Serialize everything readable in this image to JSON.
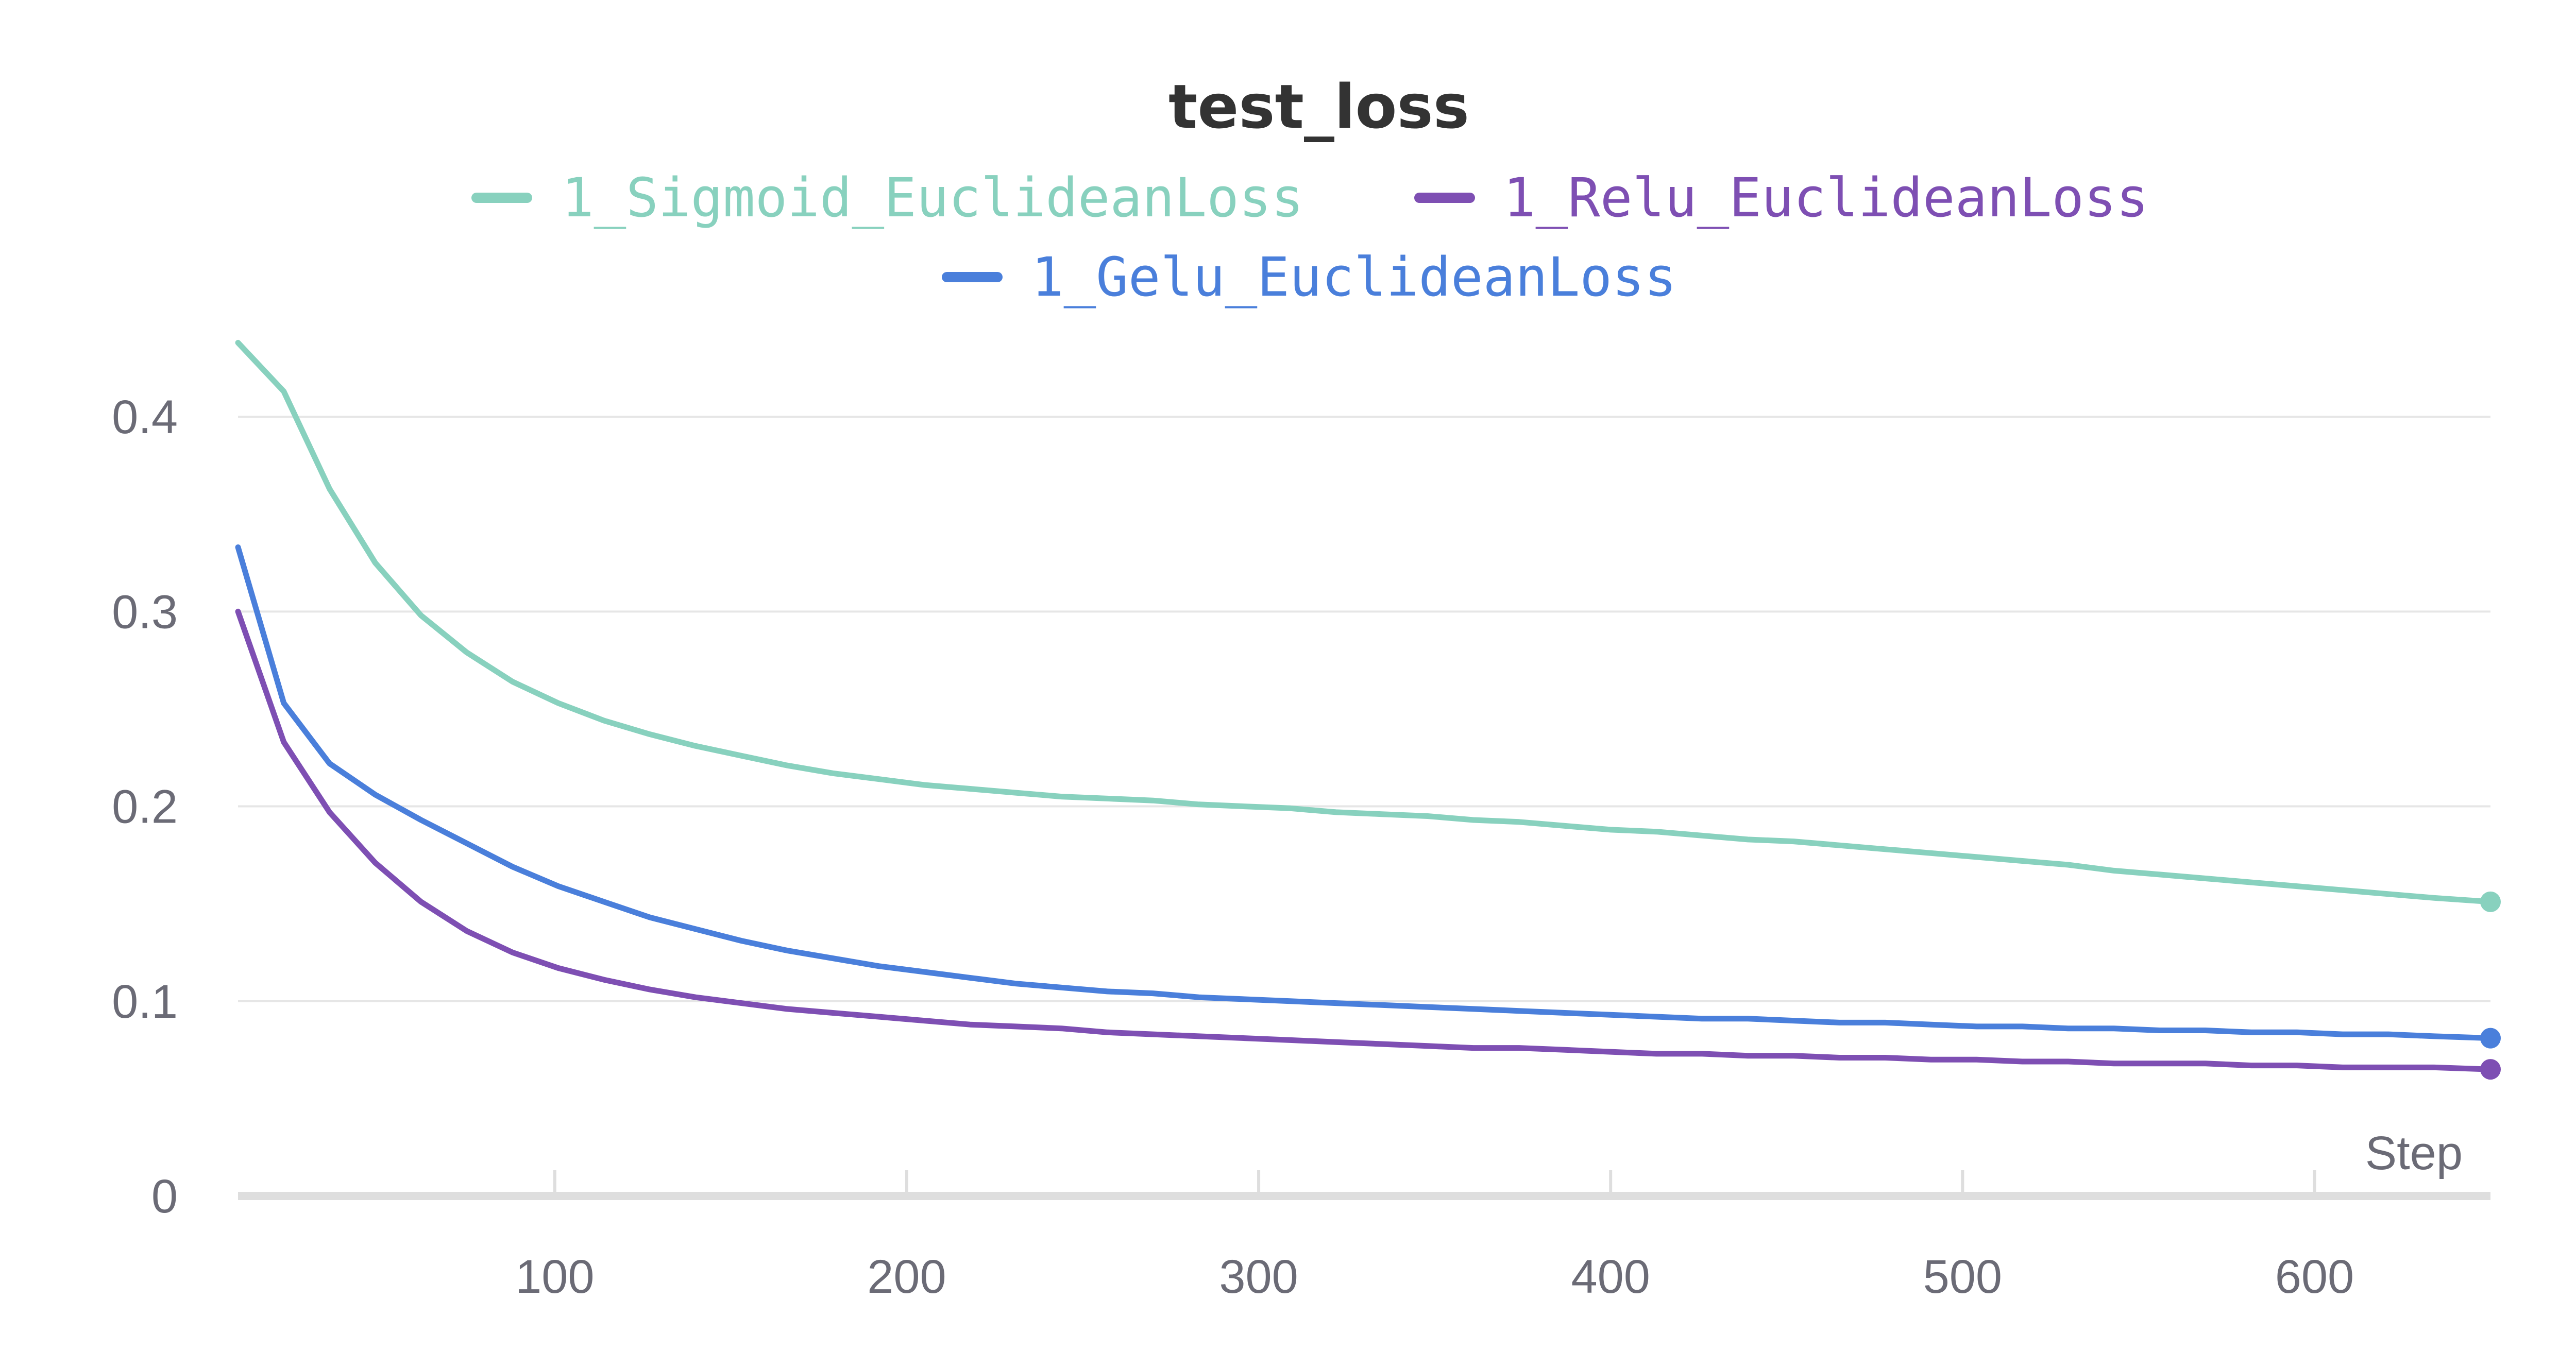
{
  "chart_data": {
    "type": "line",
    "title": "test_loss",
    "xlabel": "Step",
    "ylabel": "",
    "xlim": [
      10,
      650
    ],
    "ylim": [
      0,
      0.45
    ],
    "x_ticks": [
      100,
      200,
      300,
      400,
      500,
      600
    ],
    "y_ticks": [
      0,
      0.1,
      0.2,
      0.3,
      0.4
    ],
    "x_tick_labels": [
      "100",
      "200",
      "300",
      "400",
      "500",
      "600"
    ],
    "y_tick_labels": [
      "0",
      "0.1",
      "0.2",
      "0.3",
      "0.4"
    ],
    "grid": true,
    "legend_position": "top-center",
    "series": [
      {
        "name": "1_Sigmoid_EuclideanLoss",
        "color": "#88d1be",
        "x": [
          10,
          23,
          36,
          49,
          62,
          75,
          88,
          101,
          114,
          127,
          140,
          153,
          166,
          179,
          192,
          205,
          218,
          231,
          244,
          257,
          270,
          283,
          296,
          309,
          322,
          335,
          348,
          361,
          374,
          387,
          400,
          413,
          426,
          439,
          452,
          465,
          478,
          491,
          504,
          517,
          530,
          543,
          556,
          569,
          582,
          595,
          608,
          621,
          634,
          650
        ],
        "y": [
          0.438,
          0.413,
          0.363,
          0.325,
          0.298,
          0.279,
          0.264,
          0.253,
          0.244,
          0.237,
          0.231,
          0.226,
          0.221,
          0.217,
          0.214,
          0.211,
          0.209,
          0.207,
          0.205,
          0.204,
          0.203,
          0.201,
          0.2,
          0.199,
          0.197,
          0.196,
          0.195,
          0.193,
          0.192,
          0.19,
          0.188,
          0.187,
          0.185,
          0.183,
          0.182,
          0.18,
          0.178,
          0.176,
          0.174,
          0.172,
          0.17,
          0.167,
          0.165,
          0.163,
          0.161,
          0.159,
          0.157,
          0.155,
          0.153,
          0.151
        ]
      },
      {
        "name": "1_Relu_EuclideanLoss",
        "color": "#7e4fb3",
        "x": [
          10,
          23,
          36,
          49,
          62,
          75,
          88,
          101,
          114,
          127,
          140,
          153,
          166,
          179,
          192,
          205,
          218,
          231,
          244,
          257,
          270,
          283,
          296,
          309,
          322,
          335,
          348,
          361,
          374,
          387,
          400,
          413,
          426,
          439,
          452,
          465,
          478,
          491,
          504,
          517,
          530,
          543,
          556,
          569,
          582,
          595,
          608,
          621,
          634,
          650
        ],
        "y": [
          0.3,
          0.233,
          0.197,
          0.171,
          0.151,
          0.136,
          0.125,
          0.117,
          0.111,
          0.106,
          0.102,
          0.099,
          0.096,
          0.094,
          0.092,
          0.09,
          0.088,
          0.087,
          0.086,
          0.084,
          0.083,
          0.082,
          0.081,
          0.08,
          0.079,
          0.078,
          0.077,
          0.076,
          0.076,
          0.075,
          0.074,
          0.073,
          0.073,
          0.072,
          0.072,
          0.071,
          0.071,
          0.07,
          0.07,
          0.069,
          0.069,
          0.068,
          0.068,
          0.068,
          0.067,
          0.067,
          0.066,
          0.066,
          0.066,
          0.065
        ]
      },
      {
        "name": "1_Gelu_EuclideanLoss",
        "color": "#4a7fdb",
        "x": [
          10,
          23,
          36,
          49,
          62,
          75,
          88,
          101,
          114,
          127,
          140,
          153,
          166,
          179,
          192,
          205,
          218,
          231,
          244,
          257,
          270,
          283,
          296,
          309,
          322,
          335,
          348,
          361,
          374,
          387,
          400,
          413,
          426,
          439,
          452,
          465,
          478,
          491,
          504,
          517,
          530,
          543,
          556,
          569,
          582,
          595,
          608,
          621,
          634,
          650
        ],
        "y": [
          0.333,
          0.253,
          0.222,
          0.206,
          0.193,
          0.181,
          0.169,
          0.159,
          0.151,
          0.143,
          0.137,
          0.131,
          0.126,
          0.122,
          0.118,
          0.115,
          0.112,
          0.109,
          0.107,
          0.105,
          0.104,
          0.102,
          0.101,
          0.1,
          0.099,
          0.098,
          0.097,
          0.096,
          0.095,
          0.094,
          0.093,
          0.092,
          0.091,
          0.091,
          0.09,
          0.089,
          0.089,
          0.088,
          0.087,
          0.087,
          0.086,
          0.086,
          0.085,
          0.085,
          0.084,
          0.084,
          0.083,
          0.083,
          0.082,
          0.081
        ]
      }
    ]
  }
}
